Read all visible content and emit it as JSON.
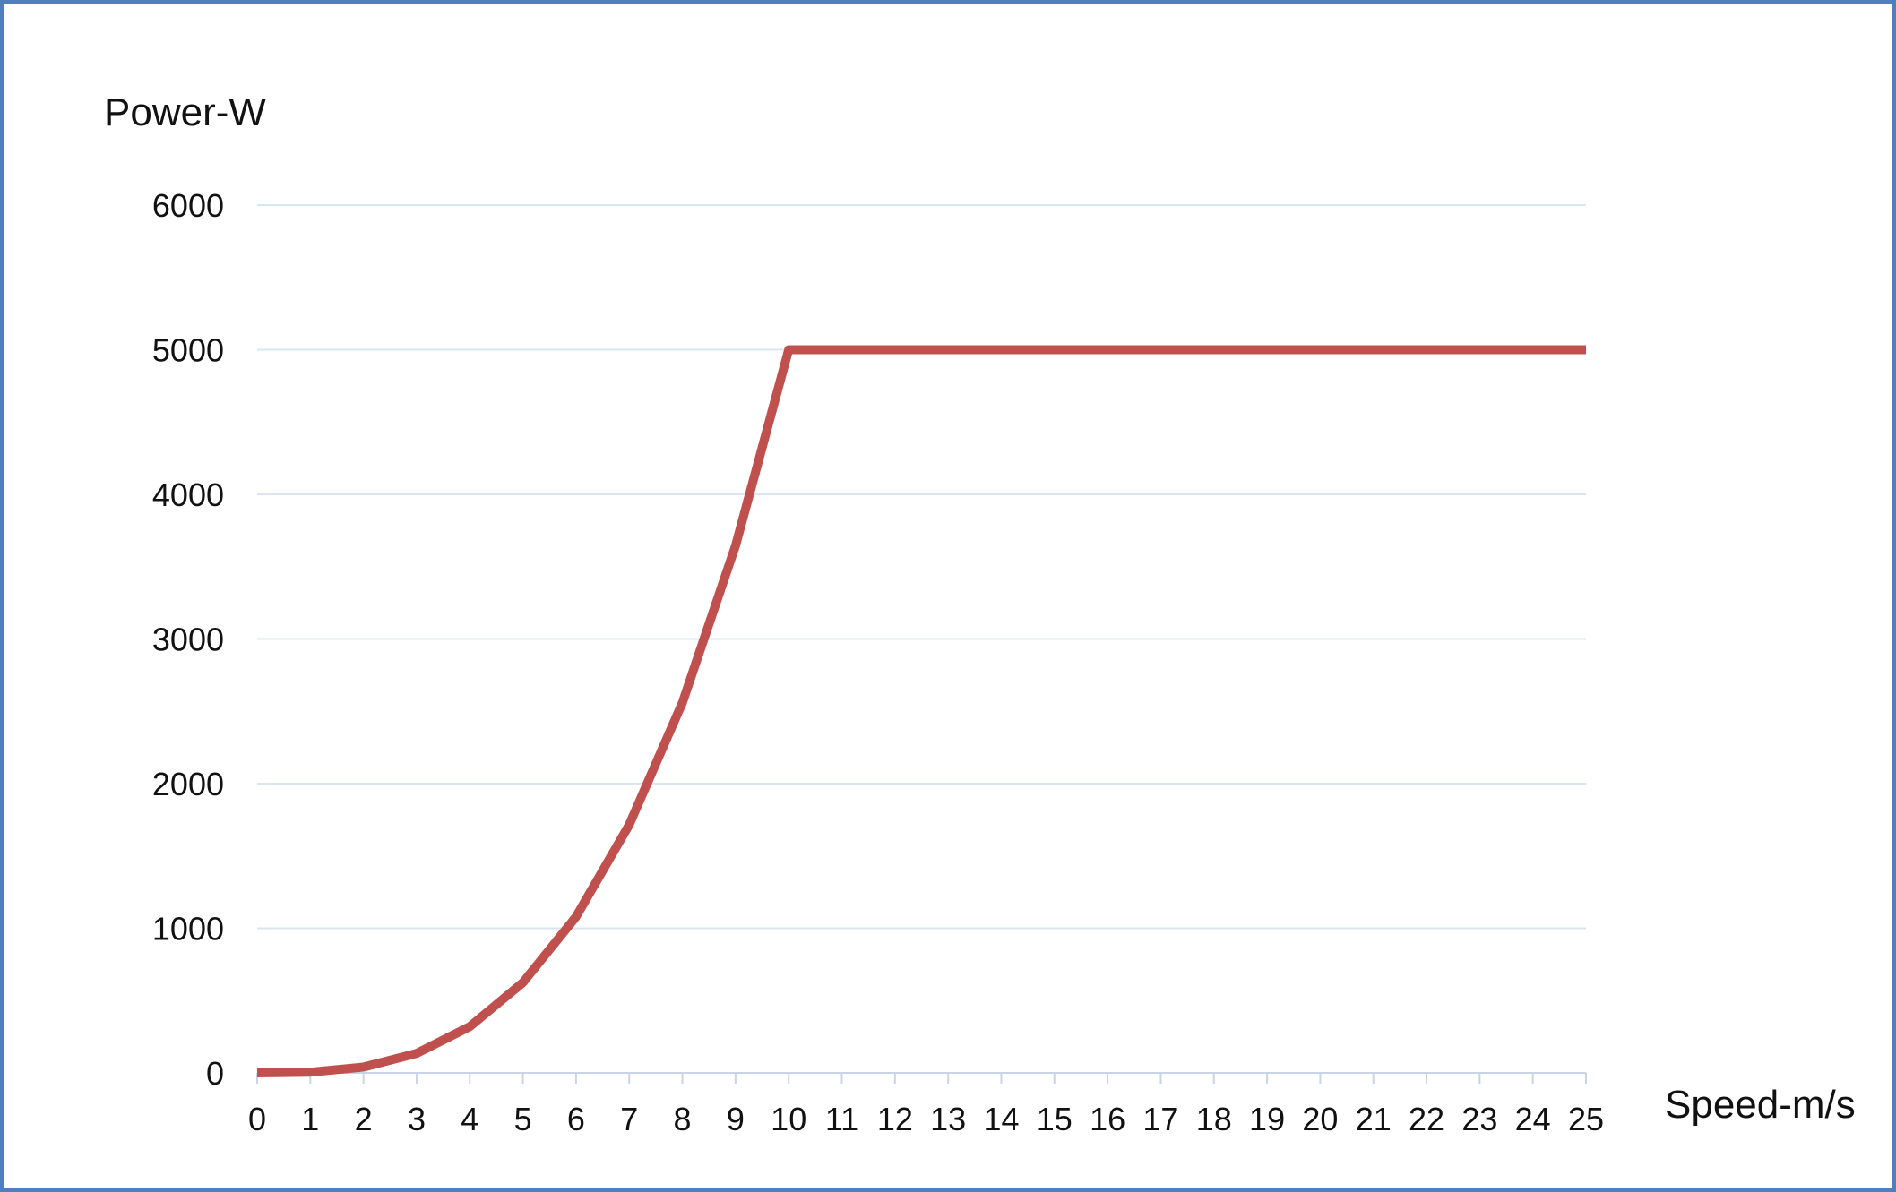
{
  "chart_data": {
    "type": "line",
    "xlabel": "Speed-m/s",
    "ylabel": "Power-W",
    "xlim": [
      0,
      25
    ],
    "ylim": [
      0,
      6000
    ],
    "x_ticks": [
      0,
      1,
      2,
      3,
      4,
      5,
      6,
      7,
      8,
      9,
      10,
      11,
      12,
      13,
      14,
      15,
      16,
      17,
      18,
      19,
      20,
      21,
      22,
      23,
      24,
      25
    ],
    "y_ticks": [
      0,
      1000,
      2000,
      3000,
      4000,
      5000,
      6000
    ],
    "grid": true,
    "legend": "none",
    "series": [
      {
        "color": "#c0504d",
        "x": [
          0,
          1,
          2,
          3,
          4,
          5,
          6,
          7,
          8,
          9,
          10,
          11,
          12,
          13,
          14,
          15,
          16,
          17,
          18,
          19,
          20,
          21,
          22,
          23,
          24,
          25
        ],
        "values": [
          0,
          5,
          40,
          135,
          320,
          625,
          1080,
          1715,
          2560,
          3645,
          5000,
          5000,
          5000,
          5000,
          5000,
          5000,
          5000,
          5000,
          5000,
          5000,
          5000,
          5000,
          5000,
          5000,
          5000,
          5000
        ]
      }
    ]
  },
  "colors": {
    "frame": "#4f7fbf",
    "grid": "#dbe5f1",
    "axis": "#c9d5e6",
    "line": "#c0504d"
  }
}
